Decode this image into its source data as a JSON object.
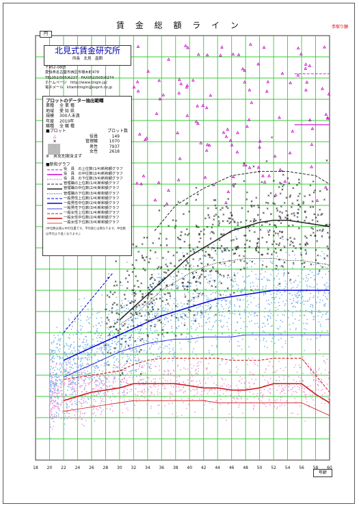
{
  "page": {
    "title": "賃 金 総 額 ラ イ ン",
    "corner_note": "手取り額",
    "unit_label": "円",
    "x_axis_unit": "年齢"
  },
  "org": {
    "name": "北見式賃金研究所",
    "sub": "所長　北見　昌朗",
    "postal": "〒452-0805",
    "address": "愛知県名古屋市西区市場木町478",
    "tel": "TEL052(505)6237　FAX052(505)6274",
    "hp": "ホームページ　http://www.tingin.jp/",
    "mail": "電子メール　kitamitingin@esprit.co.jp"
  },
  "conditions": {
    "heading": "プロットのデーター抽出範疇",
    "rows": [
      {
        "k": "業種",
        "v": "全 業 種"
      },
      {
        "k": "地域",
        "v": "愛 知 県"
      },
      {
        "k": "規模",
        "v": "300人未満"
      },
      {
        "k": "年度",
        "v": "2010年"
      },
      {
        "k": "職種",
        "v": "全 職 種"
      }
    ]
  },
  "plots": {
    "heading": "■プロット",
    "count_heading": "プロット数",
    "items": [
      {
        "symbol": "△",
        "label": "役員",
        "count": "149",
        "color": "#cc00cc"
      },
      {
        "symbol": "×",
        "label": "管理職",
        "count": "1070",
        "color": "#222222"
      },
      {
        "symbol": "·",
        "label": "男性",
        "count": "7937",
        "color": "#6aa9e6"
      },
      {
        "symbol": "·",
        "label": "女性",
        "count": "2618",
        "color": "#f08ad8"
      }
    ],
    "note": "※　男女別案含まず"
  },
  "lines_legend": {
    "heading": "■新和グラフ",
    "items": [
      {
        "label": "役　員　の上位数(1/4)新和額グラフ",
        "color": "#cc00cc",
        "dash": "4 2",
        "width": 1
      },
      {
        "label": "役　員　の中位数(2/4)新和額グラフ",
        "color": "#cc00cc",
        "dash": "",
        "width": 1.5
      },
      {
        "label": "役　員　の下位数(3/4)新和額グラフ",
        "color": "#cc00cc",
        "dash": "1 1.5",
        "width": 1
      },
      {
        "label": "管理職の上位数(1/4)新和額グラフ",
        "color": "#222222",
        "dash": "4 2",
        "width": 1
      },
      {
        "label": "管理職の中位数(2/4)新和額グラフ",
        "color": "#222222",
        "dash": "",
        "width": 1.5
      },
      {
        "label": "管理職の下位数(3/4)新和額グラフ",
        "color": "#222222",
        "dash": "1 1.5",
        "width": 1
      },
      {
        "label": "一般男性上位数(1/4)新和額グラフ",
        "color": "#0000dd",
        "dash": "4 2",
        "width": 1
      },
      {
        "label": "一般男性中位数(2/4)新和額グラフ",
        "color": "#0000dd",
        "dash": "",
        "width": 1.5
      },
      {
        "label": "一般男性下位数(3/4)新和額グラフ",
        "color": "#0000dd",
        "dash": "",
        "width": 0.8
      },
      {
        "label": "一般女性上位数(1/4)新和額グラフ",
        "color": "#cc1111",
        "dash": "4 2",
        "width": 1
      },
      {
        "label": "一般女性中位数(2/4)新和額グラフ",
        "color": "#cc1111",
        "dash": "",
        "width": 1.5
      },
      {
        "label": "一般女性下位数(3/4)新和額グラフ",
        "color": "#cc1111",
        "dash": "",
        "width": 0.8
      }
    ],
    "footnote": "(中位数は真ん中の位置です。平均値とは異なります。中位数は平均より低くなります。)"
  },
  "chart_data": {
    "type": "scatter",
    "xlabel": "年齢",
    "ylabel": "円",
    "xlim": [
      18,
      60
    ],
    "ylim": [
      0,
      100
    ],
    "x_ticks": [
      18,
      20,
      22,
      24,
      26,
      28,
      30,
      32,
      34,
      36,
      38,
      40,
      42,
      44,
      46,
      48,
      50,
      52,
      54,
      56,
      58,
      60
    ],
    "y_ticks": [
      0,
      5,
      10,
      15,
      20,
      25,
      30,
      35,
      40,
      45,
      50,
      55,
      60,
      65,
      70,
      75,
      80,
      85,
      90,
      95,
      100
    ],
    "grid": true,
    "y_tick_labels_shown": false,
    "legend_position": "top-left",
    "scatter_series": [
      {
        "name": "役員",
        "marker": "triangle",
        "color": "#cc00cc",
        "count": 149
      },
      {
        "name": "管理職",
        "marker": "cross",
        "color": "#222222",
        "count": 1070
      },
      {
        "name": "男性",
        "marker": "dot",
        "color": "#7db4ea",
        "count": 7937
      },
      {
        "name": "女性",
        "marker": "dot",
        "color": "#f39ad9",
        "count": 2618
      }
    ],
    "series": [
      {
        "name": "役員の中位数",
        "color": "#cc00cc",
        "dash": "",
        "width": 1.2,
        "x": [
          55,
          60
        ],
        "y": [
          79,
          79
        ]
      },
      {
        "name": "役員の上位数",
        "color": "#cc00cc",
        "dash": "4 2",
        "width": 0.8,
        "x": [
          55,
          60
        ],
        "y": [
          91,
          91
        ]
      },
      {
        "name": "管理職の上位数",
        "color": "#222222",
        "dash": "4 2",
        "width": 1,
        "x": [
          35,
          38,
          42,
          46,
          50,
          54,
          58,
          60
        ],
        "y": [
          54,
          60,
          64,
          67,
          68,
          68,
          67,
          65
        ]
      },
      {
        "name": "管理職の中位数",
        "color": "#222222",
        "dash": "",
        "width": 1.5,
        "x": [
          30,
          32,
          34,
          36,
          38,
          40,
          42,
          44,
          46,
          48,
          50,
          52,
          54,
          56,
          58,
          60
        ],
        "y": [
          33,
          36,
          39,
          42,
          45,
          48,
          50,
          52,
          54,
          55,
          56,
          56.5,
          56.5,
          56,
          55.5,
          55
        ]
      },
      {
        "name": "管理職の下位数",
        "color": "#222222",
        "dash": "1 1.5",
        "width": 1,
        "x": [
          30,
          32,
          34,
          36,
          38,
          40,
          42,
          44,
          46,
          48,
          50,
          52,
          54,
          56,
          58,
          60
        ],
        "y": [
          32,
          34,
          37,
          40,
          42,
          44,
          45.5,
          46.5,
          47,
          47.5,
          47.5,
          47.5,
          47,
          47,
          46.5,
          46
        ]
      },
      {
        "name": "一般男性上位数",
        "color": "#0000dd",
        "dash": "4 2",
        "width": 1,
        "x": [
          22,
          24,
          26,
          28,
          29
        ],
        "y": [
          30,
          34,
          38,
          42,
          44
        ]
      },
      {
        "name": "一般男性中位数",
        "color": "#0000dd",
        "dash": "",
        "width": 1.5,
        "x": [
          22,
          24,
          26,
          28,
          30,
          32,
          34,
          36,
          38,
          40,
          42,
          44,
          46,
          48,
          50,
          52,
          54,
          56,
          58,
          60
        ],
        "y": [
          23.5,
          25,
          26.5,
          28,
          29.5,
          31,
          32.5,
          34,
          35,
          36,
          37,
          38,
          38.5,
          39,
          39.5,
          40,
          40,
          40,
          40,
          40
        ]
      },
      {
        "name": "一般男性下位数",
        "color": "#0000dd",
        "dash": "",
        "width": 0.8,
        "x": [
          22,
          24,
          26,
          28,
          30,
          32,
          34,
          36,
          38,
          40,
          42,
          44,
          46,
          48,
          50,
          52,
          54,
          56,
          58,
          60
        ],
        "y": [
          19.5,
          21,
          22.5,
          24,
          25.5,
          26.5,
          27.5,
          28,
          28.5,
          28.5,
          29,
          29,
          29,
          29.5,
          29.5,
          29.5,
          29.5,
          29.5,
          29.5,
          29.5
        ]
      },
      {
        "name": "一般女性上位数",
        "color": "#cc1111",
        "dash": "4 2",
        "width": 1,
        "x": [
          22,
          24,
          26,
          28,
          30,
          32,
          34,
          36,
          38,
          40,
          42,
          44,
          46,
          48,
          50,
          52,
          54,
          56,
          58,
          60
        ],
        "y": [
          19,
          19.5,
          20,
          20.5,
          21,
          22.5,
          23.5,
          24,
          24,
          24,
          24,
          24,
          23.5,
          23.5,
          23.5,
          24,
          24,
          24,
          20,
          16
        ]
      },
      {
        "name": "一般女性中位数",
        "color": "#cc1111",
        "dash": "",
        "width": 1.5,
        "x": [
          22,
          24,
          26,
          28,
          30,
          32,
          34,
          36,
          38,
          40,
          42,
          44,
          46,
          48,
          50,
          52,
          54,
          56,
          58,
          60
        ],
        "y": [
          14,
          15,
          16,
          16.5,
          17,
          18,
          18,
          18,
          18,
          17.5,
          17,
          17,
          16.5,
          16.5,
          17,
          18,
          18,
          18,
          15.5,
          13.5
        ]
      },
      {
        "name": "一般女性下位数",
        "color": "#cc1111",
        "dash": "",
        "width": 0.8,
        "x": [
          22,
          24,
          26,
          28,
          30,
          32,
          34,
          36,
          38,
          40,
          42,
          44,
          46,
          48,
          50,
          52,
          54,
          56,
          58,
          60
        ],
        "y": [
          11.5,
          12,
          12.5,
          13,
          13.5,
          14,
          14,
          14,
          14,
          14,
          14,
          13.5,
          13.5,
          13.5,
          13.5,
          13.5,
          13.5,
          13.5,
          12,
          10.5
        ]
      }
    ]
  }
}
